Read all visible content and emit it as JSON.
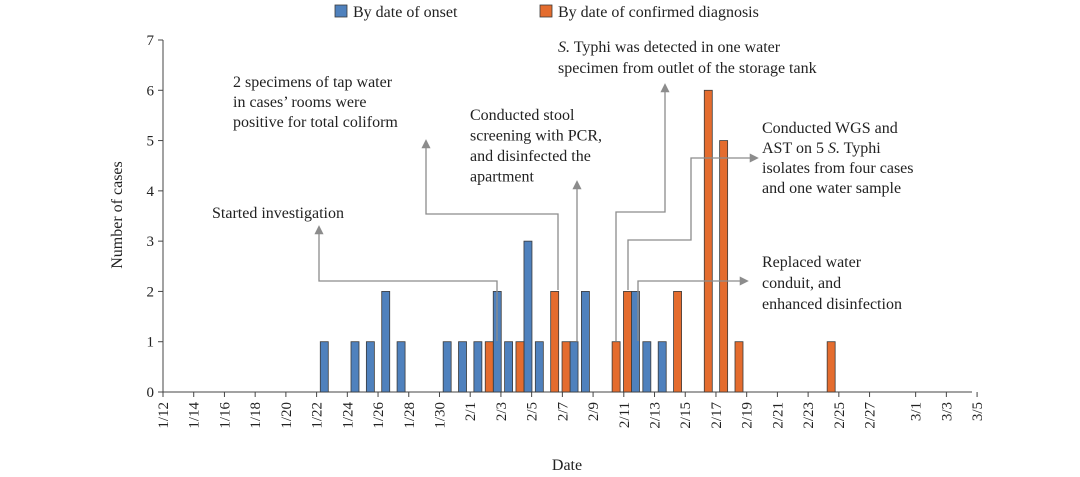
{
  "chart_data": {
    "type": "bar",
    "xlabel": "Date",
    "ylabel": "Number of cases",
    "ylim": [
      0,
      7
    ],
    "yticks": [
      0,
      1,
      2,
      3,
      4,
      5,
      6,
      7
    ],
    "x_tick_labels": [
      "1/12",
      "1/14",
      "1/16",
      "1/18",
      "1/20",
      "1/22",
      "1/24",
      "1/26",
      "1/28",
      "1/30",
      "2/1",
      "2/3",
      "2/5",
      "2/7",
      "2/9",
      "2/11",
      "2/13",
      "2/15",
      "2/17",
      "2/19",
      "2/21",
      "2/23",
      "2/25",
      "2/27",
      "3/1",
      "3/3",
      "3/5"
    ],
    "legend_position": "top",
    "series": [
      {
        "name": "By date of onset",
        "color": "#4f81bd",
        "points": [
          {
            "date": "1/22",
            "value": 1
          },
          {
            "date": "1/24",
            "value": 1
          },
          {
            "date": "1/25",
            "value": 1
          },
          {
            "date": "1/26",
            "value": 2
          },
          {
            "date": "1/27",
            "value": 1
          },
          {
            "date": "1/30",
            "value": 1
          },
          {
            "date": "1/31",
            "value": 1
          },
          {
            "date": "2/1",
            "value": 1
          },
          {
            "date": "2/2",
            "value": 2
          },
          {
            "date": "2/3",
            "value": 1
          },
          {
            "date": "2/4",
            "value": 3
          },
          {
            "date": "2/5",
            "value": 1
          },
          {
            "date": "2/7",
            "value": 1
          },
          {
            "date": "2/8",
            "value": 2
          },
          {
            "date": "2/11",
            "value": 2
          },
          {
            "date": "2/12",
            "value": 1
          },
          {
            "date": "2/13",
            "value": 1
          }
        ]
      },
      {
        "name": "By date of confirmed diagnosis",
        "color": "#e46c2e",
        "points": [
          {
            "date": "2/2",
            "value": 1
          },
          {
            "date": "2/4",
            "value": 1
          },
          {
            "date": "2/6",
            "value": 2
          },
          {
            "date": "2/7",
            "value": 1
          },
          {
            "date": "2/10",
            "value": 1
          },
          {
            "date": "2/11",
            "value": 2
          },
          {
            "date": "2/14",
            "value": 2
          },
          {
            "date": "2/16",
            "value": 6
          },
          {
            "date": "2/17",
            "value": 5
          },
          {
            "date": "2/18",
            "value": 1
          },
          {
            "date": "2/24",
            "value": 1
          }
        ]
      }
    ],
    "annotations": [
      {
        "name": "started-investigation",
        "lines": [
          [
            {
              "t": "Started investigation"
            }
          ]
        ]
      },
      {
        "name": "tap-water-coliform",
        "lines": [
          [
            {
              "t": "2 specimens of tap water"
            }
          ],
          [
            {
              "t": "in cases’ rooms were"
            }
          ],
          [
            {
              "t": "positive for  total coliform"
            }
          ]
        ]
      },
      {
        "name": "stool-screening",
        "lines": [
          [
            {
              "t": "Conducted stool"
            }
          ],
          [
            {
              "t": "screening with PCR,"
            }
          ],
          [
            {
              "t": "and disinfected the"
            }
          ],
          [
            {
              "t": "apartment"
            }
          ]
        ]
      },
      {
        "name": "typhi-detected-water",
        "lines": [
          [
            {
              "t": "S.",
              "i": true
            },
            {
              "t": " Typhi was detected in one water"
            }
          ],
          [
            {
              "t": "specimen from outlet of the storage tank"
            }
          ]
        ]
      },
      {
        "name": "wgs-ast",
        "lines": [
          [
            {
              "t": "Conducted WGS and"
            }
          ],
          [
            {
              "t": "AST on 5 "
            },
            {
              "t": "S.",
              "i": true
            },
            {
              "t": " Typhi"
            }
          ],
          [
            {
              "t": "isolates from four cases"
            }
          ],
          [
            {
              "t": "and one water sample"
            }
          ]
        ]
      },
      {
        "name": "replaced-conduit",
        "lines": [
          [
            {
              "t": "Replaced water"
            }
          ],
          [
            {
              "t": "conduit, and"
            }
          ],
          [
            {
              "t": "enhanced disinfection"
            }
          ]
        ]
      }
    ]
  }
}
